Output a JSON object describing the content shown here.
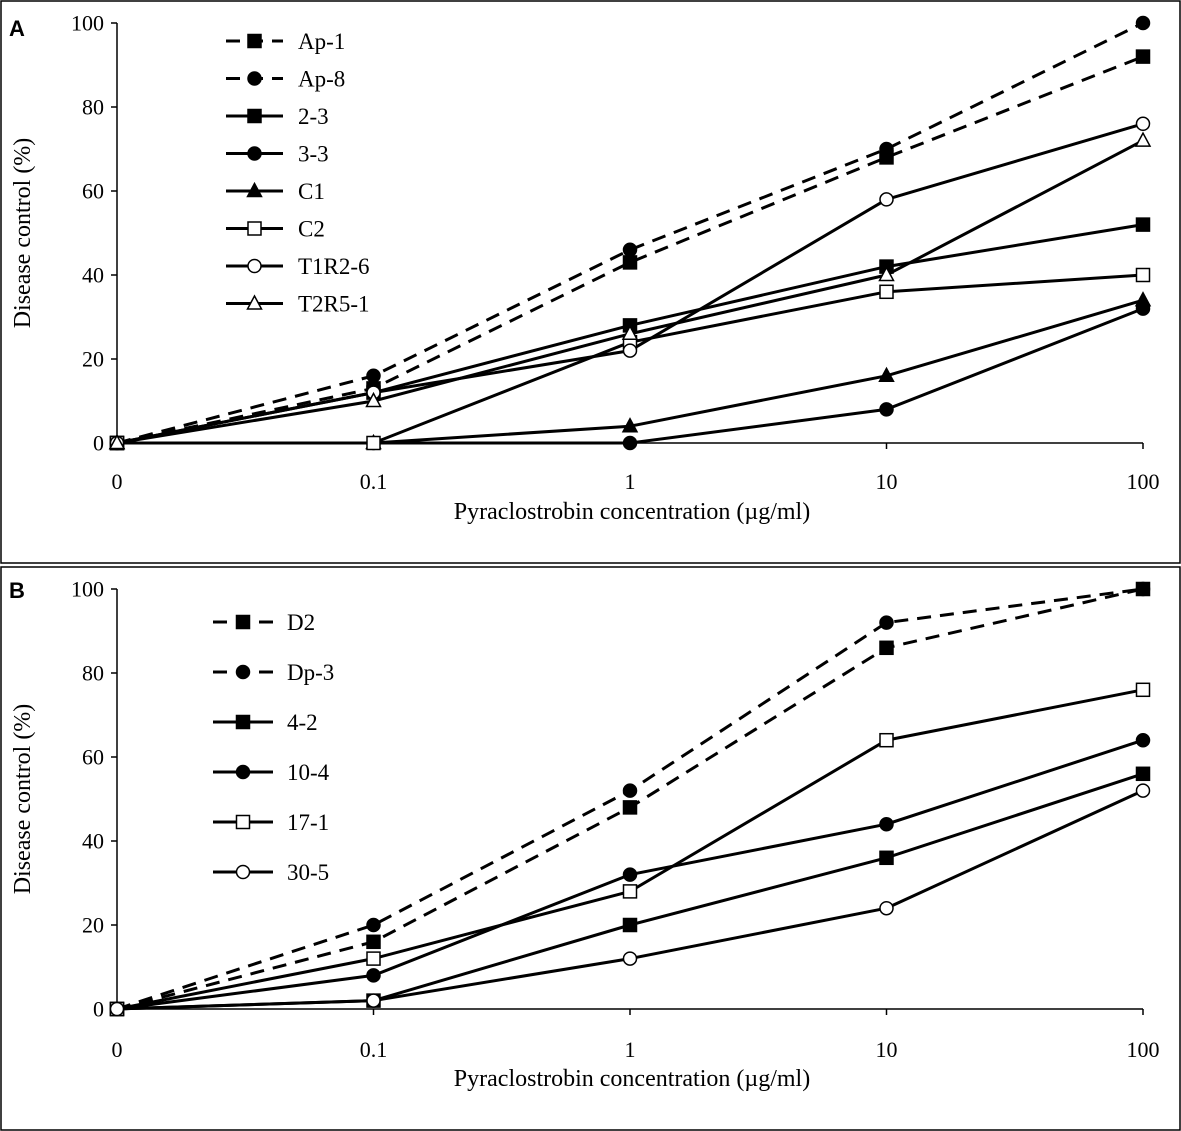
{
  "chart_data": [
    {
      "panel": "A",
      "type": "line",
      "xlabel": "Pyraclostrobin concentration (µg/ml)",
      "ylabel": "Disease control (%)",
      "categories": [
        "0",
        "0.1",
        "1",
        "10",
        "100"
      ],
      "ylim": [
        0,
        100
      ],
      "yticks": [
        "0",
        "20",
        "40",
        "60",
        "80",
        "100"
      ],
      "legend_position": "top-left",
      "series": [
        {
          "name": "Ap-1",
          "marker": "square-filled",
          "dashed": true,
          "values": [
            0,
            13,
            43,
            68,
            92
          ]
        },
        {
          "name": "Ap-8",
          "marker": "circle-filled",
          "dashed": true,
          "values": [
            0,
            16,
            46,
            70,
            100
          ]
        },
        {
          "name": "2-3",
          "marker": "square-filled",
          "dashed": false,
          "values": [
            0,
            12,
            28,
            42,
            52
          ]
        },
        {
          "name": "3-3",
          "marker": "circle-filled",
          "dashed": false,
          "values": [
            0,
            0,
            0,
            8,
            32
          ]
        },
        {
          "name": "C1",
          "marker": "triangle-filled",
          "dashed": false,
          "values": [
            0,
            0,
            4,
            16,
            34
          ]
        },
        {
          "name": "C2",
          "marker": "square-open",
          "dashed": false,
          "values": [
            0,
            0,
            24,
            36,
            40
          ]
        },
        {
          "name": "T1R2-6",
          "marker": "circle-open",
          "dashed": false,
          "values": [
            0,
            12,
            22,
            58,
            76
          ]
        },
        {
          "name": "T2R5-1",
          "marker": "triangle-open",
          "dashed": false,
          "values": [
            0,
            10,
            26,
            40,
            72
          ]
        }
      ]
    },
    {
      "panel": "B",
      "type": "line",
      "xlabel": "Pyraclostrobin concentration (µg/ml)",
      "ylabel": "Disease control (%)",
      "categories": [
        "0",
        "0.1",
        "1",
        "10",
        "100"
      ],
      "ylim": [
        0,
        100
      ],
      "yticks": [
        "0",
        "20",
        "40",
        "60",
        "80",
        "100"
      ],
      "legend_position": "top-left",
      "series": [
        {
          "name": "D2",
          "marker": "square-filled",
          "dashed": true,
          "values": [
            0,
            16,
            48,
            86,
            100
          ]
        },
        {
          "name": "Dp-3",
          "marker": "circle-filled",
          "dashed": true,
          "values": [
            0,
            20,
            52,
            92,
            100
          ]
        },
        {
          "name": "4-2",
          "marker": "square-filled",
          "dashed": false,
          "values": [
            0,
            2,
            20,
            36,
            56
          ]
        },
        {
          "name": "10-4",
          "marker": "circle-filled",
          "dashed": false,
          "values": [
            0,
            8,
            32,
            44,
            64
          ]
        },
        {
          "name": "17-1",
          "marker": "square-open",
          "dashed": false,
          "values": [
            0,
            12,
            28,
            64,
            76
          ]
        },
        {
          "name": "30-5",
          "marker": "circle-open",
          "dashed": false,
          "values": [
            0,
            2,
            12,
            24,
            52
          ]
        }
      ]
    }
  ]
}
